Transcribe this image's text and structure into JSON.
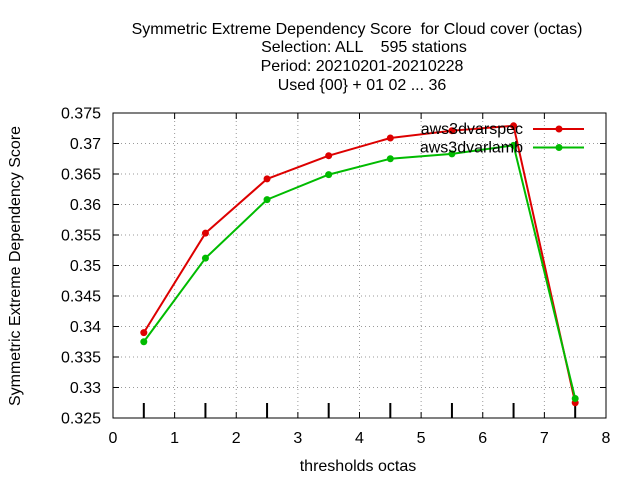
{
  "chart_data": {
    "type": "line",
    "title_lines": [
      "Symmetric Extreme Dependency Score  for Cloud cover (octas)",
      "Selection: ALL    595 stations",
      "Period: 20210201-20210228",
      "Used {00} + 01 02 ... 36"
    ],
    "xlabel": "thresholds octas",
    "ylabel": "Symmetric Extreme Dependency Score",
    "xlim": [
      0,
      8
    ],
    "ylim": [
      0.325,
      0.375
    ],
    "x_ticks": [
      "0",
      "1",
      "2",
      "3",
      "4",
      "5",
      "6",
      "7",
      "8"
    ],
    "y_ticks": [
      "0.325",
      "0.33",
      "0.335",
      "0.34",
      "0.345",
      "0.35",
      "0.355",
      "0.36",
      "0.365",
      "0.37",
      "0.375"
    ],
    "grid": true,
    "legend_position": "top-right",
    "threshold_markers": [
      0.5,
      1.5,
      2.5,
      3.5,
      4.5,
      5.5,
      6.5,
      7.5
    ],
    "x": [
      0.5,
      1.5,
      2.5,
      3.5,
      4.5,
      5.5,
      6.5,
      7.5
    ],
    "series": [
      {
        "name": "aws3dvarspec",
        "color": "#dd0000",
        "values": [
          0.339,
          0.3553,
          0.3642,
          0.368,
          0.3709,
          0.3721,
          0.3729,
          0.3275
        ]
      },
      {
        "name": "aws3dvarlamb",
        "color": "#00bb00",
        "values": [
          0.3375,
          0.3512,
          0.3608,
          0.3649,
          0.3675,
          0.3683,
          0.3697,
          0.3282
        ]
      }
    ]
  }
}
